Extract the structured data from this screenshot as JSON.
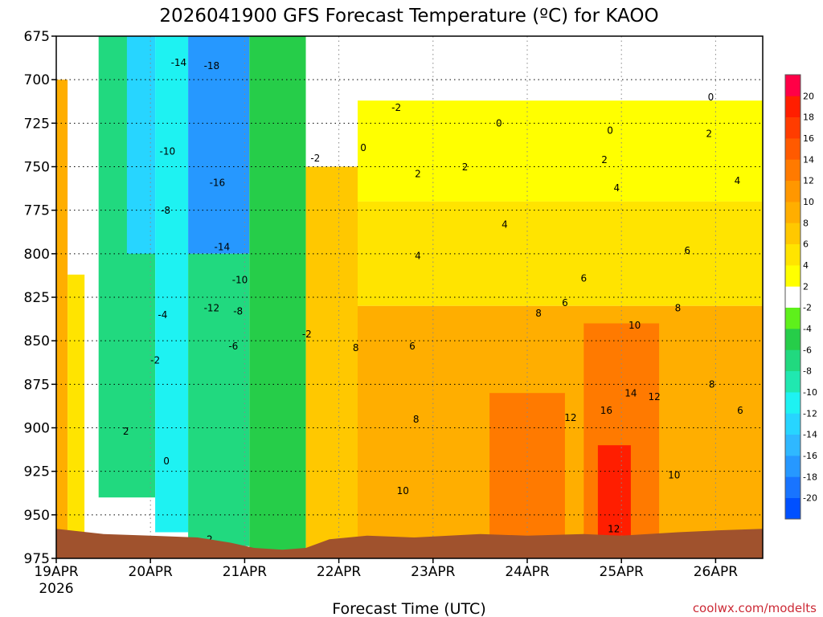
{
  "chart_data": {
    "type": "heatmap",
    "title": "2026041900 GFS Forecast Temperature (ºC) for KAOO",
    "xlabel": "Forecast Time (UTC)",
    "ylabel": "",
    "credit": "coolwx.com/modelts",
    "x_ticks": [
      "19APR",
      "20APR",
      "21APR",
      "22APR",
      "23APR",
      "24APR",
      "25APR",
      "26APR"
    ],
    "x_tick_days": [
      0,
      1,
      2,
      3,
      4,
      5,
      6,
      7
    ],
    "x_year_label": "2026",
    "xlim_days": [
      0,
      7.5
    ],
    "y_ticks": [
      675,
      700,
      725,
      750,
      775,
      800,
      825,
      850,
      875,
      900,
      925,
      950,
      975
    ],
    "ylim_hpa": [
      975,
      675
    ],
    "grid": true,
    "colorbar": {
      "levels": [
        -22,
        -20,
        -18,
        -16,
        -14,
        -12,
        -10,
        -8,
        -6,
        -4,
        -2,
        2,
        4,
        6,
        8,
        10,
        12,
        14,
        16,
        18,
        20,
        22
      ],
      "labels": [
        "-20",
        "-18",
        "-16",
        "-14",
        "-12",
        "-10",
        "-8",
        "-6",
        "-4",
        "-2",
        "2",
        "4",
        "6",
        "8",
        "10",
        "12",
        "14",
        "16",
        "18",
        "20"
      ],
      "colors": [
        "#0050ff",
        "#1874ff",
        "#2698ff",
        "#2fb8ff",
        "#27d5ff",
        "#1ef2f2",
        "#20e8b0",
        "#21d97f",
        "#26cd49",
        "#5ef01b",
        "#ffffff",
        "#ffff00",
        "#ffe400",
        "#ffc800",
        "#ffae00",
        "#ff9700",
        "#ff7a00",
        "#ff5a00",
        "#ff3c00",
        "#ff1e00",
        "#ff0046"
      ]
    },
    "contour_bands": [
      {
        "from_day": 0.0,
        "to_day": 0.12,
        "top_hpa": 700,
        "bottom_hpa": 962,
        "value": 9
      },
      {
        "from_day": 0.12,
        "to_day": 0.3,
        "top_hpa": 812,
        "bottom_hpa": 962,
        "value": 5
      },
      {
        "from_day": 0.3,
        "to_day": 0.45,
        "top_hpa": 850,
        "bottom_hpa": 962,
        "value": 1
      },
      {
        "from_day": 0.45,
        "to_day": 1.05,
        "top_hpa": 675,
        "bottom_hpa": 940,
        "value": -7
      },
      {
        "from_day": 0.75,
        "to_day": 1.05,
        "top_hpa": 675,
        "bottom_hpa": 800,
        "value": -13
      },
      {
        "from_day": 1.05,
        "to_day": 1.4,
        "top_hpa": 675,
        "bottom_hpa": 960,
        "value": -11
      },
      {
        "from_day": 1.4,
        "to_day": 2.05,
        "top_hpa": 675,
        "bottom_hpa": 800,
        "value": -18
      },
      {
        "from_day": 1.4,
        "to_day": 2.05,
        "top_hpa": 800,
        "bottom_hpa": 968,
        "value": -7
      },
      {
        "from_day": 2.05,
        "to_day": 2.65,
        "top_hpa": 675,
        "bottom_hpa": 972,
        "value": -5
      },
      {
        "from_day": 2.65,
        "to_day": 3.2,
        "top_hpa": 675,
        "bottom_hpa": 750,
        "value": -1
      },
      {
        "from_day": 2.65,
        "to_day": 3.2,
        "top_hpa": 750,
        "bottom_hpa": 970,
        "value": 7
      },
      {
        "from_day": 3.2,
        "to_day": 7.5,
        "top_hpa": 675,
        "bottom_hpa": 712,
        "value": 0
      },
      {
        "from_day": 3.2,
        "to_day": 7.5,
        "top_hpa": 712,
        "bottom_hpa": 770,
        "value": 3
      },
      {
        "from_day": 3.2,
        "to_day": 7.5,
        "top_hpa": 770,
        "bottom_hpa": 830,
        "value": 5
      },
      {
        "from_day": 3.2,
        "to_day": 7.5,
        "top_hpa": 830,
        "bottom_hpa": 970,
        "value": 9
      },
      {
        "from_day": 4.6,
        "to_day": 5.4,
        "top_hpa": 880,
        "bottom_hpa": 962,
        "value": 13
      },
      {
        "from_day": 5.6,
        "to_day": 6.4,
        "top_hpa": 840,
        "bottom_hpa": 962,
        "value": 13
      },
      {
        "from_day": 5.75,
        "to_day": 6.1,
        "top_hpa": 910,
        "bottom_hpa": 962,
        "value": 19
      }
    ],
    "contour_labels": [
      {
        "text": "-14",
        "day": 1.3,
        "hpa": 692
      },
      {
        "text": "-18",
        "day": 1.65,
        "hpa": 694
      },
      {
        "text": "-10",
        "day": 1.18,
        "hpa": 743
      },
      {
        "text": "-16",
        "day": 1.71,
        "hpa": 761
      },
      {
        "text": "-8",
        "day": 1.16,
        "hpa": 777
      },
      {
        "text": "-14",
        "day": 1.76,
        "hpa": 798
      },
      {
        "text": "-10",
        "day": 1.95,
        "hpa": 817
      },
      {
        "text": "-12",
        "day": 1.65,
        "hpa": 833
      },
      {
        "text": "-4",
        "day": 1.13,
        "hpa": 837
      },
      {
        "text": "-8",
        "day": 1.93,
        "hpa": 835
      },
      {
        "text": "-6",
        "day": 1.88,
        "hpa": 855
      },
      {
        "text": "-2",
        "day": 1.05,
        "hpa": 863
      },
      {
        "text": "-2",
        "day": 2.66,
        "hpa": 848
      },
      {
        "text": "-2",
        "day": 2.75,
        "hpa": 747
      },
      {
        "text": "-2",
        "day": 3.61,
        "hpa": 718
      },
      {
        "text": "0",
        "day": 4.7,
        "hpa": 727
      },
      {
        "text": "0",
        "day": 5.88,
        "hpa": 731
      },
      {
        "text": "0",
        "day": 6.95,
        "hpa": 712
      },
      {
        "text": "0",
        "day": 3.26,
        "hpa": 741
      },
      {
        "text": "0",
        "day": 1.17,
        "hpa": 921
      },
      {
        "text": "2",
        "day": 0.74,
        "hpa": 904
      },
      {
        "text": "-2",
        "day": 1.61,
        "hpa": 966
      },
      {
        "text": "2",
        "day": 3.84,
        "hpa": 756
      },
      {
        "text": "2",
        "day": 4.34,
        "hpa": 752
      },
      {
        "text": "2",
        "day": 5.82,
        "hpa": 748
      },
      {
        "text": "2",
        "day": 6.93,
        "hpa": 733
      },
      {
        "text": "4",
        "day": 4.76,
        "hpa": 785
      },
      {
        "text": "4",
        "day": 5.95,
        "hpa": 764
      },
      {
        "text": "4",
        "day": 7.23,
        "hpa": 760
      },
      {
        "text": "4",
        "day": 3.84,
        "hpa": 803
      },
      {
        "text": "6",
        "day": 5.4,
        "hpa": 830
      },
      {
        "text": "6",
        "day": 5.6,
        "hpa": 816
      },
      {
        "text": "6",
        "day": 6.7,
        "hpa": 800
      },
      {
        "text": "6",
        "day": 3.78,
        "hpa": 855
      },
      {
        "text": "8",
        "day": 5.12,
        "hpa": 836
      },
      {
        "text": "8",
        "day": 6.6,
        "hpa": 833
      },
      {
        "text": "8",
        "day": 6.96,
        "hpa": 877
      },
      {
        "text": "8",
        "day": 3.18,
        "hpa": 856
      },
      {
        "text": "8",
        "day": 3.82,
        "hpa": 897
      },
      {
        "text": "10",
        "day": 6.14,
        "hpa": 843
      },
      {
        "text": "10",
        "day": 3.68,
        "hpa": 938
      },
      {
        "text": "10",
        "day": 6.56,
        "hpa": 929
      },
      {
        "text": "12",
        "day": 5.46,
        "hpa": 896
      },
      {
        "text": "12",
        "day": 6.35,
        "hpa": 884
      },
      {
        "text": "12",
        "day": 5.92,
        "hpa": 960
      },
      {
        "text": "14",
        "day": 6.1,
        "hpa": 882
      },
      {
        "text": "16",
        "day": 5.84,
        "hpa": 892
      },
      {
        "text": "6",
        "day": 7.26,
        "hpa": 892
      }
    ],
    "terrain": {
      "color": "#a0522d",
      "surface_days": [
        0.0,
        0.5,
        1.0,
        1.5,
        1.85,
        2.1,
        2.4,
        2.65,
        2.9,
        3.3,
        3.8,
        4.5,
        5.0,
        5.6,
        6.0,
        6.6,
        7.0,
        7.5
      ],
      "surface_hpa": [
        958,
        961,
        962,
        963,
        966,
        969,
        970,
        969,
        964,
        962,
        963,
        961,
        962,
        961,
        962,
        960,
        959,
        958
      ]
    }
  }
}
